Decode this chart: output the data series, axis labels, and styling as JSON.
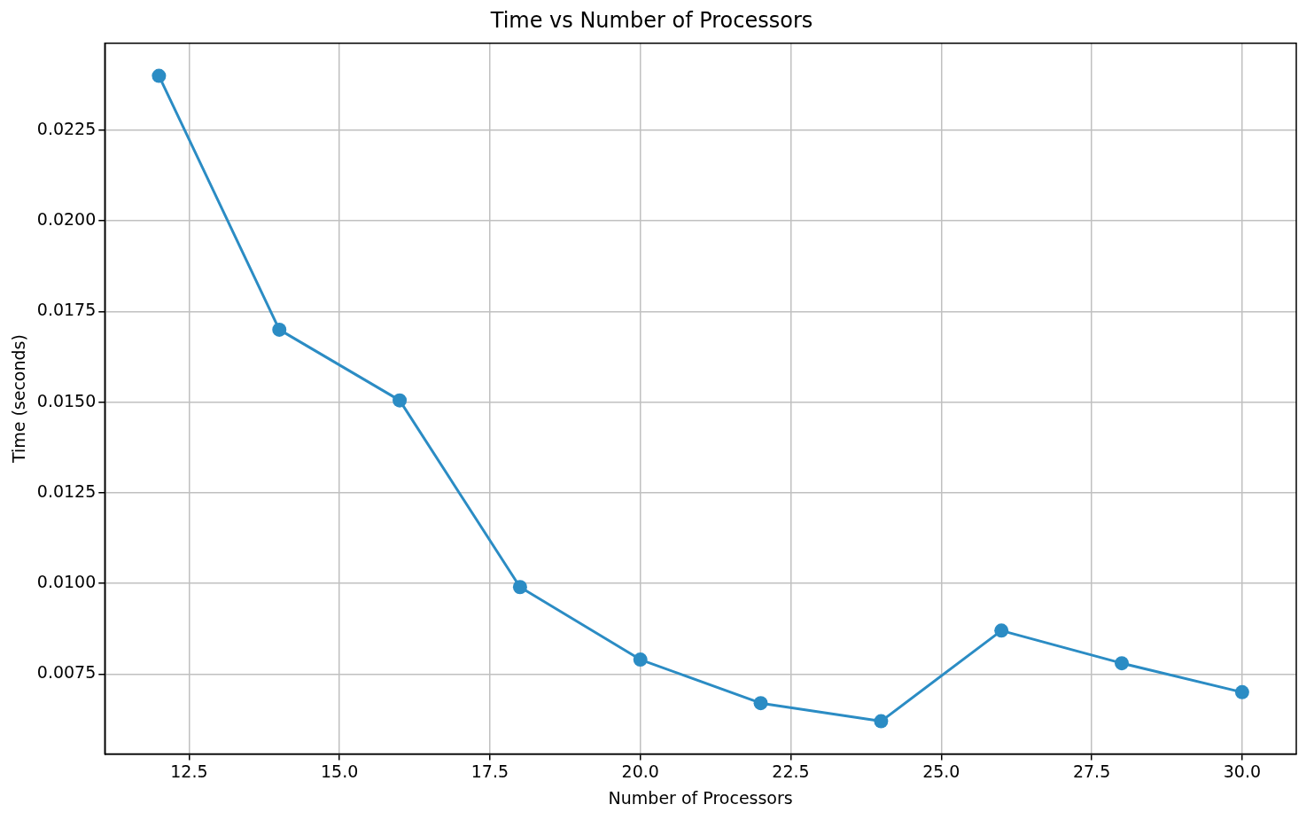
{
  "chart_data": {
    "type": "line",
    "title": "Time vs Number of Processors",
    "xlabel": "Number of Processors",
    "ylabel": "Time (seconds)",
    "x": [
      12,
      14,
      16,
      18,
      20,
      22,
      24,
      26,
      28,
      30
    ],
    "series": [
      {
        "color": "#2b8cc4",
        "values": [
          0.024,
          0.017,
          0.01505,
          0.0099,
          0.0079,
          0.0067,
          0.0062,
          0.0087,
          0.0078,
          0.007
        ]
      }
    ],
    "xlim": [
      11.1,
      30.9
    ],
    "xticks": [
      {
        "value": 12.5,
        "label": "12.5"
      },
      {
        "value": 15,
        "label": "15.0"
      },
      {
        "value": 17.5,
        "label": "17.5"
      },
      {
        "value": 20,
        "label": "20.0"
      },
      {
        "value": 22.5,
        "label": "22.5"
      },
      {
        "value": 25,
        "label": "25.0"
      },
      {
        "value": 27.5,
        "label": "27.5"
      },
      {
        "value": 30,
        "label": "30.0"
      }
    ],
    "ylim": [
      0.0053,
      0.0249
    ],
    "yticks": [
      {
        "value": 0.0075,
        "label": "0.0075"
      },
      {
        "value": 0.01,
        "label": "0.0100"
      },
      {
        "value": 0.0125,
        "label": "0.0125"
      },
      {
        "value": 0.015,
        "label": "0.0150"
      },
      {
        "value": 0.0175,
        "label": "0.0175"
      },
      {
        "value": 0.02,
        "label": "0.0200"
      },
      {
        "value": 0.0225,
        "label": "0.0225"
      }
    ],
    "grid": true,
    "legend": false,
    "marker": "circle",
    "line_style": "solid"
  }
}
